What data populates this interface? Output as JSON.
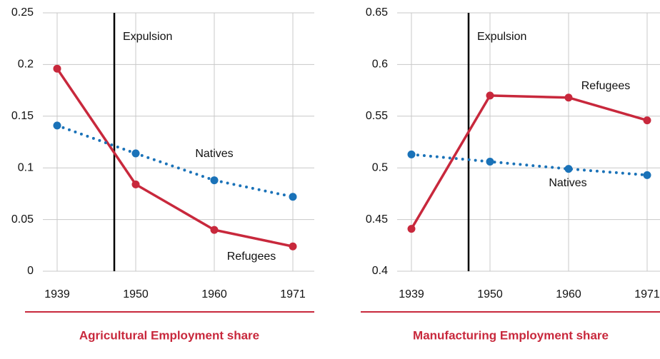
{
  "chart_data": [
    {
      "type": "line",
      "title": "Agricultural Employment share",
      "annotation": "Expulsion",
      "categories": [
        "1939",
        "1950",
        "1960",
        "1971"
      ],
      "ylim": [
        0,
        0.25
      ],
      "yticks": [
        0,
        0.05,
        0.1,
        0.15,
        0.2,
        0.25
      ],
      "grid": true,
      "series": [
        {
          "name": "Refugees",
          "color": "#c8283c",
          "line_style": "solid",
          "values": [
            0.196,
            0.084,
            0.04,
            0.024
          ]
        },
        {
          "name": "Natives",
          "color": "#1a72b8",
          "line_style": "dotted",
          "values": [
            0.141,
            0.114,
            0.088,
            0.072
          ]
        }
      ]
    },
    {
      "type": "line",
      "title": "Manufacturing Employment share",
      "annotation": "Expulsion",
      "categories": [
        "1939",
        "1950",
        "1960",
        "1971"
      ],
      "ylim": [
        0.4,
        0.65
      ],
      "yticks": [
        0.4,
        0.45,
        0.5,
        0.55,
        0.6,
        0.65
      ],
      "grid": true,
      "series": [
        {
          "name": "Refugees",
          "color": "#c8283c",
          "line_style": "solid",
          "values": [
            0.441,
            0.57,
            0.568,
            0.546
          ]
        },
        {
          "name": "Natives",
          "color": "#1a72b8",
          "line_style": "dotted",
          "values": [
            0.513,
            0.506,
            0.499,
            0.493
          ]
        }
      ]
    }
  ]
}
